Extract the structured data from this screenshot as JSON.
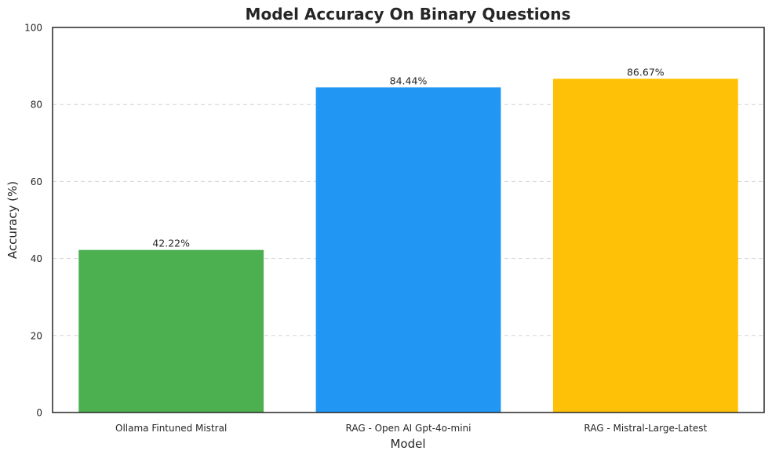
{
  "chart_data": {
    "type": "bar",
    "title": "Model Accuracy On Binary Questions",
    "xlabel": "Model",
    "ylabel": "Accuracy (%)",
    "ylim": [
      0,
      100
    ],
    "yticks": [
      "0",
      "20",
      "40",
      "60",
      "80",
      "100"
    ],
    "grid": "y dashed",
    "categories": [
      "Ollama Fintuned Mistral",
      "RAG - Open AI Gpt-4o-mini",
      "RAG - Mistral-Large-Latest"
    ],
    "values": [
      42.22,
      84.44,
      86.67
    ],
    "data_labels": [
      "42.22%",
      "84.44%",
      "86.67%"
    ],
    "colors": [
      "#4caf50",
      "#2196f3",
      "#ffc107"
    ]
  }
}
